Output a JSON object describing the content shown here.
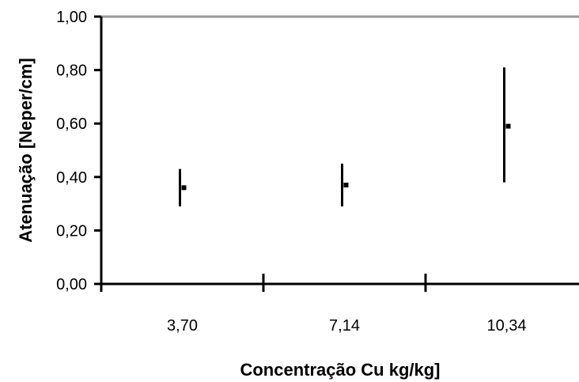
{
  "chart_data": {
    "type": "scatter",
    "title": "",
    "xlabel": "Concentração Cu kg/kg]",
    "ylabel": "Atenuação [Neper/cm]",
    "categories": [
      "3,70",
      "7,14",
      "10,34"
    ],
    "ylim": [
      0,
      1
    ],
    "yticks": [
      "0,00",
      "0,20",
      "0,40",
      "0,60",
      "0,80",
      "1,00"
    ],
    "series": [
      {
        "values": [
          0.36,
          0.37,
          0.59
        ],
        "error_low": [
          0.29,
          0.29,
          0.38
        ],
        "error_high": [
          0.43,
          0.45,
          0.81
        ]
      }
    ],
    "grid": false,
    "colors": {
      "marks": "#000000",
      "top_border": "#999999"
    }
  }
}
